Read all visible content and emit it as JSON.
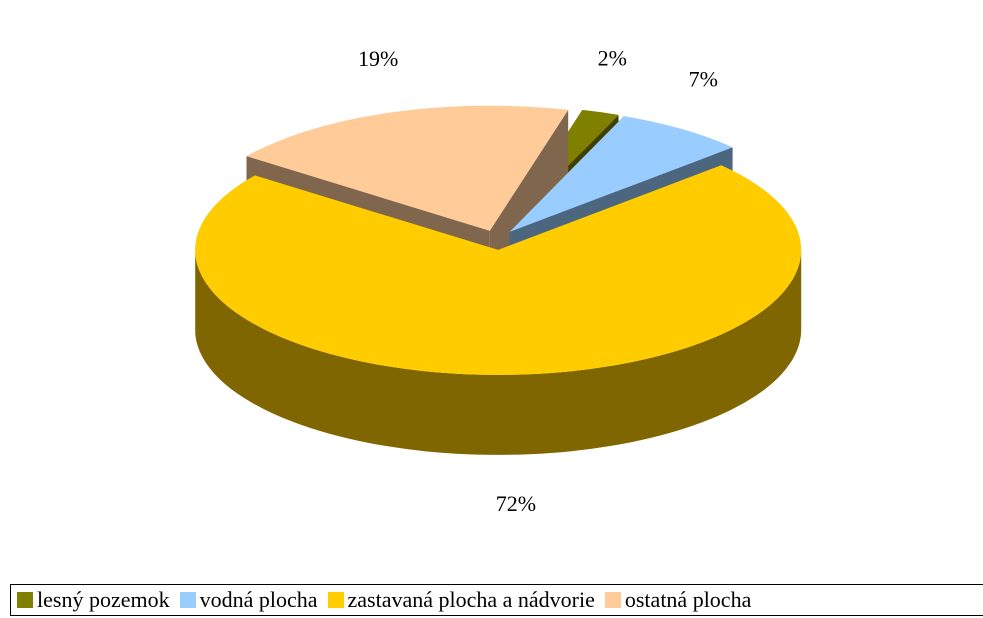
{
  "chart_data": {
    "type": "pie3d",
    "categories": [
      "lesný pozemok",
      "vodná plocha",
      "zastavaná plocha a nádvorie",
      "ostatná plocha"
    ],
    "values": [
      2,
      7,
      72,
      19
    ],
    "value_labels": [
      "2%",
      "7%",
      "72%",
      "19%"
    ],
    "colors": [
      "#808000",
      "#99ccff",
      "#ffcc00",
      "#ffcc99"
    ],
    "legend": "bottom"
  }
}
